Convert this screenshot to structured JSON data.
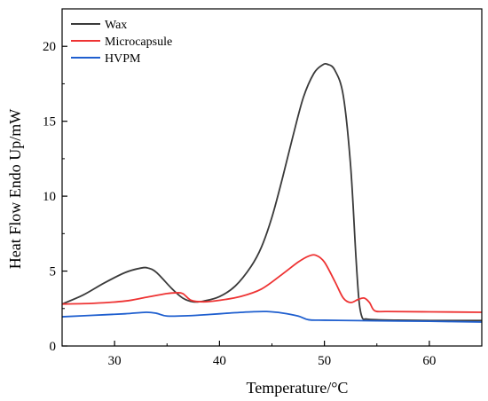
{
  "chart_data": {
    "type": "line",
    "xlabel": "Temperature/°C",
    "ylabel": "Heat Flow Endo Up/mW",
    "xlim": [
      25,
      65
    ],
    "ylim": [
      0,
      22.5
    ],
    "xticks": [
      30,
      40,
      50,
      60
    ],
    "yticks": [
      0,
      5,
      10,
      15,
      20
    ],
    "xtick_labels": [
      "30",
      "40",
      "50",
      "60"
    ],
    "ytick_labels": [
      "0",
      "5",
      "10",
      "15",
      "20"
    ],
    "grid": false,
    "legend": "top-left",
    "series": [
      {
        "name": "Wax",
        "color": "#3a3a3a",
        "x": [
          25,
          27,
          29,
          31,
          32.5,
          33.2,
          34,
          35.5,
          36.5,
          37.5,
          38.5,
          40,
          41.5,
          43,
          44,
          45,
          46,
          47,
          48,
          49,
          49.8,
          50.3,
          51,
          51.8,
          52.5,
          53,
          53.3,
          53.6,
          54,
          55,
          57,
          60,
          65
        ],
        "y": [
          2.8,
          3.4,
          4.2,
          4.9,
          5.2,
          5.2,
          4.9,
          3.8,
          3.2,
          2.95,
          3.0,
          3.3,
          4.0,
          5.3,
          6.6,
          8.6,
          11.2,
          14.0,
          16.6,
          18.2,
          18.75,
          18.8,
          18.4,
          16.7,
          12.0,
          6.0,
          3.0,
          1.9,
          1.8,
          1.75,
          1.72,
          1.7,
          1.7
        ]
      },
      {
        "name": "Microcapsule",
        "color": "#ee3333",
        "x": [
          25,
          28,
          31,
          33,
          35,
          35.8,
          36.5,
          37.3,
          38.5,
          40,
          42,
          44,
          46,
          47.5,
          48.5,
          49.2,
          50,
          51,
          51.8,
          52.5,
          53.2,
          53.8,
          54.3,
          54.8,
          56,
          60,
          65
        ],
        "y": [
          2.8,
          2.85,
          3.0,
          3.25,
          3.5,
          3.55,
          3.5,
          3.05,
          2.95,
          3.05,
          3.3,
          3.8,
          4.8,
          5.6,
          6.0,
          6.05,
          5.6,
          4.3,
          3.2,
          2.9,
          3.1,
          3.2,
          2.9,
          2.35,
          2.3,
          2.28,
          2.25
        ]
      },
      {
        "name": "HVPM",
        "color": "#1f5fcf",
        "x": [
          25,
          28,
          31,
          33,
          34,
          35,
          37,
          39,
          41,
          43,
          44.5,
          46,
          47.5,
          48.5,
          50,
          55,
          60,
          65
        ],
        "y": [
          1.95,
          2.05,
          2.15,
          2.25,
          2.18,
          2.0,
          2.02,
          2.1,
          2.2,
          2.28,
          2.3,
          2.2,
          2.0,
          1.75,
          1.72,
          1.68,
          1.65,
          1.6
        ]
      }
    ]
  }
}
